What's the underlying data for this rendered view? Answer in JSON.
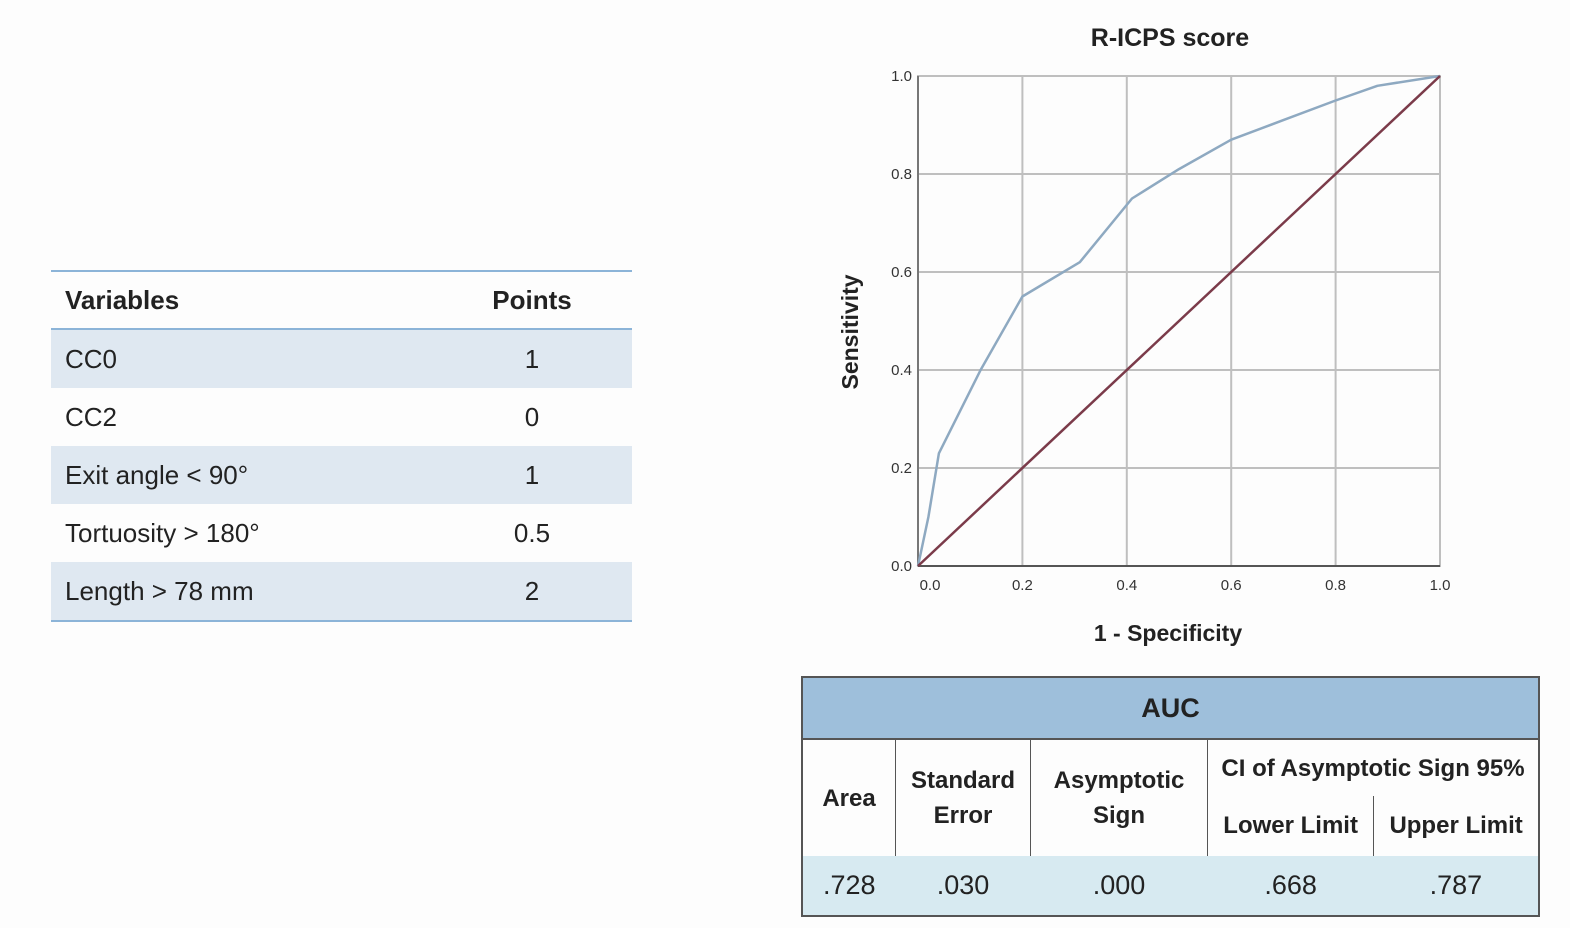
{
  "points_table": {
    "headers": {
      "variables": "Variables",
      "points": "Points"
    },
    "rows": [
      {
        "variable": "CC0",
        "points": "1"
      },
      {
        "variable": "CC2",
        "points": "0"
      },
      {
        "variable": "Exit angle < 90°",
        "points": "1"
      },
      {
        "variable": "Tortuosity > 180°",
        "points": "0.5"
      },
      {
        "variable": "Length > 78 mm",
        "points": "2"
      }
    ]
  },
  "chart_data": {
    "type": "line",
    "title": "R-ICPS score",
    "xlabel": "1 - Specificity",
    "ylabel": "Sensitivity",
    "xlim": [
      0,
      1
    ],
    "ylim": [
      0,
      1
    ],
    "xticks": [
      "0.0",
      "0.2",
      "0.4",
      "0.6",
      "0.8",
      "1.0"
    ],
    "yticks": [
      "0.0",
      "0.2",
      "0.4",
      "0.6",
      "0.8",
      "1.0"
    ],
    "grid": true,
    "series": [
      {
        "color": "#8ea9c1",
        "x": [
          0,
          0.01,
          0.02,
          0.04,
          0.12,
          0.2,
          0.31,
          0.41,
          0.5,
          0.6,
          0.7,
          0.8,
          0.88,
          1.0
        ],
        "y": [
          0,
          0.05,
          0.1,
          0.23,
          0.4,
          0.55,
          0.62,
          0.75,
          0.81,
          0.87,
          0.91,
          0.95,
          0.98,
          1.0
        ]
      },
      {
        "color": "#7b3b4a",
        "x": [
          0,
          1
        ],
        "y": [
          0,
          1
        ]
      }
    ]
  },
  "auc_table": {
    "caption": "AUC",
    "headers": {
      "area": "Area",
      "std_error_1": "Standard",
      "std_error_2": "Error",
      "asym_sign_1": "Asymptotic",
      "asym_sign_2": "Sign",
      "ci": "CI of Asymptotic Sign 95%",
      "lower": "Lower Limit",
      "upper": "Upper Limit"
    },
    "values": {
      "area": ".728",
      "std_error": ".030",
      "asym_sign": ".000",
      "lower": ".668",
      "upper": ".787"
    }
  }
}
